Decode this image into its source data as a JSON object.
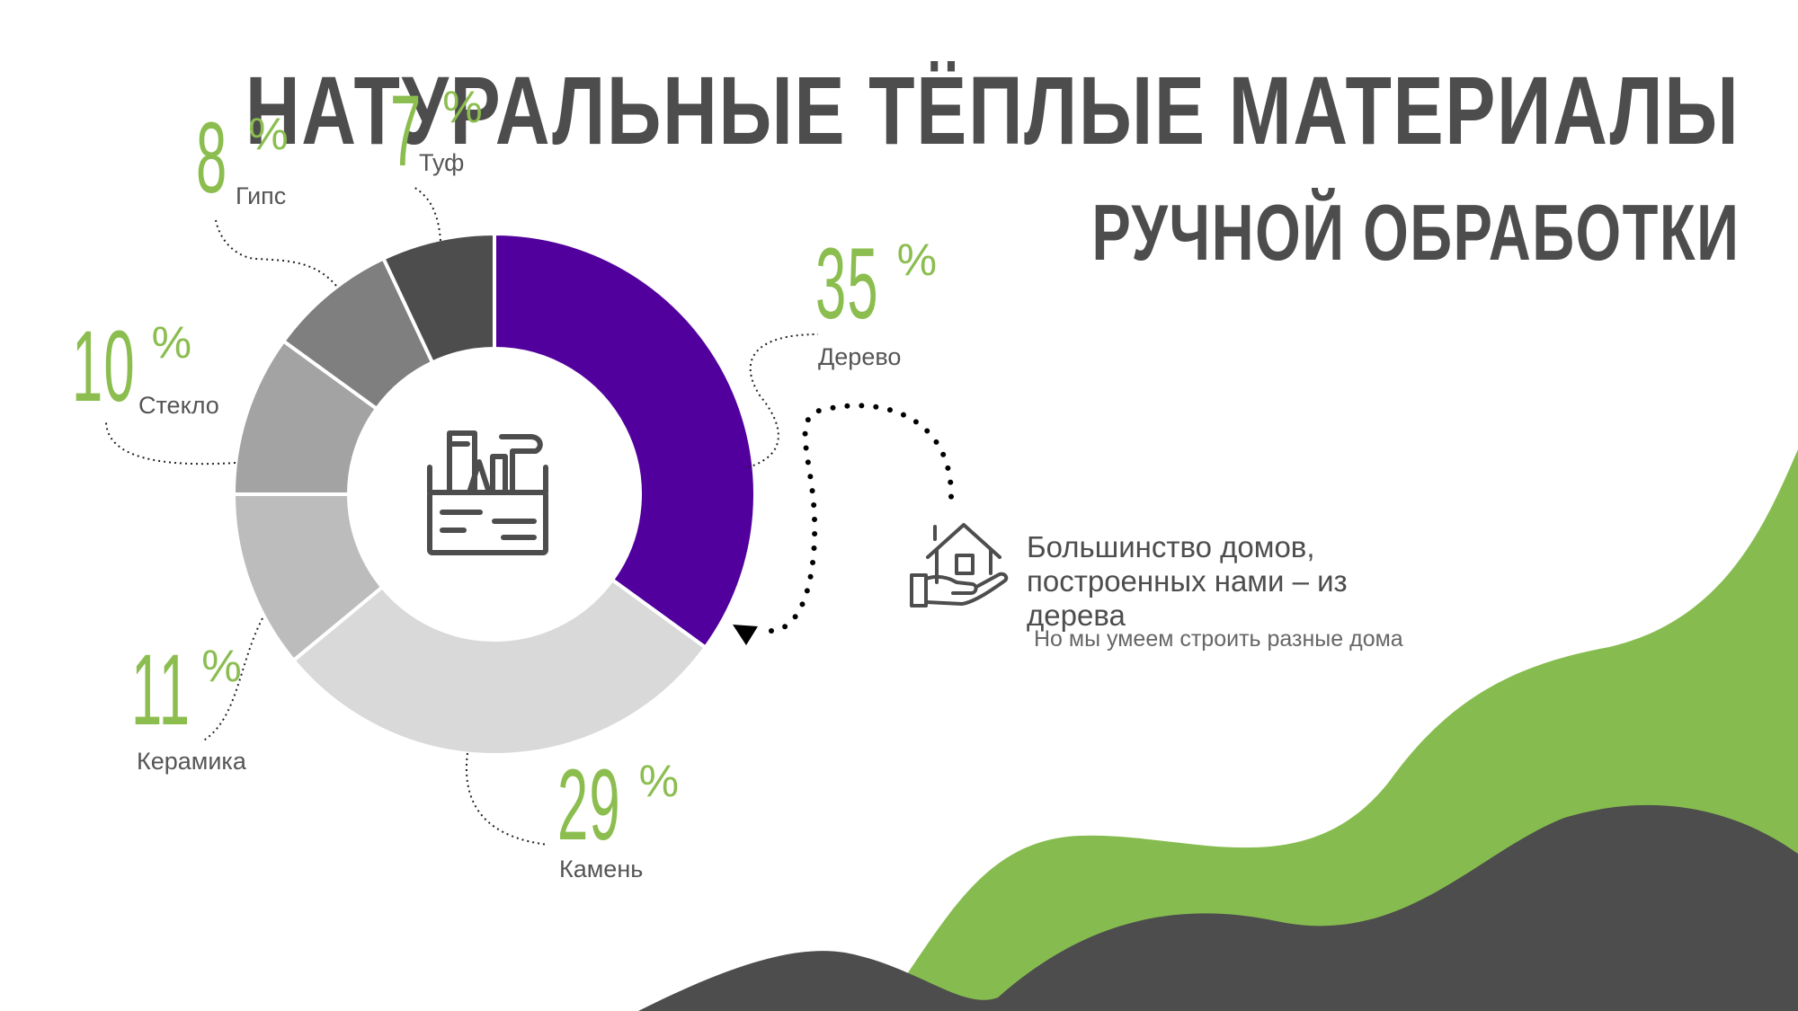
{
  "title": {
    "main": "Натуральные Тёплые материалы",
    "sub": "ручной обработки"
  },
  "chart_data": {
    "type": "pie",
    "categories": [
      "Дерево",
      "Камень",
      "Керамика",
      "Стекло",
      "Гипс",
      "Туф"
    ],
    "values": [
      35,
      29,
      11,
      10,
      8,
      7
    ],
    "value_labels": [
      "35",
      "29",
      "11",
      "10",
      "8",
      "7"
    ],
    "percent_sign": "%",
    "colors": [
      "#52009d",
      "#d9d9d9",
      "#bcbcbc",
      "#a3a3a3",
      "#7f7f7f",
      "#4d4d4d"
    ],
    "donut": true,
    "start_angle_deg": 0,
    "direction": "clockwise"
  },
  "note": {
    "headline_line1": "Большинство домов,",
    "headline_line2": "построенных нами – из дерева",
    "subtext": "Но мы умеем строить разные дома"
  },
  "colors": {
    "accent_green": "#86bc4f",
    "dark_gray": "#4d4d4d",
    "purple": "#52009d"
  },
  "icons": [
    "toolbox-icon",
    "house-in-hand-icon",
    "arrowhead-icon"
  ]
}
